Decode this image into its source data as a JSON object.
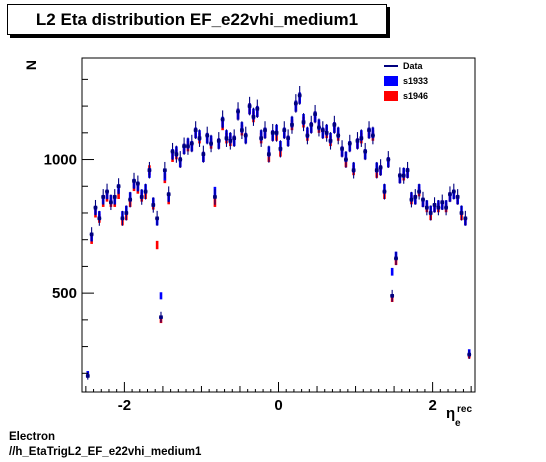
{
  "title": "L2 Eta distribution EF_e22vhi_medium1",
  "footer": {
    "line1": "Electron",
    "line2": "//h_EtaTrigL2_EF_e22vhi_medium1"
  },
  "colors": {
    "data": "#00007f",
    "s1933": "#0000ff",
    "s1946": "#ff0000"
  },
  "chart_data": {
    "type": "scatter",
    "title": "L2 Eta distribution EF_e22vhi_medium1",
    "xlabel": "η",
    "xlabel_sub": "e",
    "xlabel_sup": "rec",
    "ylabel": "N",
    "xlim": [
      -2.55,
      2.55
    ],
    "ylim": [
      130,
      1380
    ],
    "xticks": [
      -2,
      0,
      2
    ],
    "xtick_labels": [
      "-2",
      "0",
      "2"
    ],
    "yticks": [
      500,
      1000
    ],
    "ytick_labels": [
      "500",
      "1000"
    ],
    "legend_position": "top-right",
    "legend": [
      "Data",
      "s1933",
      "s1946"
    ],
    "x": [
      -2.475,
      -2.425,
      -2.375,
      -2.325,
      -2.275,
      -2.225,
      -2.175,
      -2.125,
      -2.075,
      -2.025,
      -1.975,
      -1.925,
      -1.875,
      -1.825,
      -1.775,
      -1.725,
      -1.675,
      -1.625,
      -1.575,
      -1.525,
      -1.475,
      -1.425,
      -1.375,
      -1.325,
      -1.275,
      -1.225,
      -1.175,
      -1.125,
      -1.075,
      -1.025,
      -0.975,
      -0.925,
      -0.875,
      -0.825,
      -0.775,
      -0.725,
      -0.675,
      -0.625,
      -0.575,
      -0.525,
      -0.475,
      -0.425,
      -0.375,
      -0.325,
      -0.275,
      -0.225,
      -0.175,
      -0.125,
      -0.075,
      -0.025,
      0.025,
      0.075,
      0.125,
      0.175,
      0.225,
      0.275,
      0.325,
      0.375,
      0.425,
      0.475,
      0.525,
      0.575,
      0.625,
      0.675,
      0.725,
      0.775,
      0.825,
      0.875,
      0.925,
      0.975,
      1.025,
      1.075,
      1.125,
      1.175,
      1.225,
      1.275,
      1.325,
      1.375,
      1.425,
      1.475,
      1.525,
      1.575,
      1.625,
      1.675,
      1.725,
      1.775,
      1.825,
      1.875,
      1.925,
      1.975,
      2.025,
      2.075,
      2.125,
      2.175,
      2.225,
      2.275,
      2.325,
      2.375,
      2.425,
      2.475
    ],
    "series": [
      {
        "name": "Data",
        "values": [
          190,
          720,
          820,
          780,
          860,
          880,
          840,
          860,
          900,
          780,
          800,
          850,
          920,
          910,
          860,
          880,
          960,
          830,
          780,
          410,
          960,
          870,
          1030,
          1020,
          1000,
          1050,
          1050,
          1060,
          1110,
          1080,
          1020,
          1090,
          1060,
          860,
          1070,
          1150,
          1080,
          1070,
          1080,
          1180,
          1110,
          1090,
          1200,
          1160,
          1190,
          1080,
          1110,
          1020,
          1100,
          1100,
          1040,
          1110,
          1080,
          1130,
          1210,
          1240,
          1140,
          1090,
          1130,
          1170,
          1120,
          1110,
          1100,
          1070,
          1130,
          1090,
          1040,
          1000,
          1060,
          960,
          1070,
          1080,
          1030,
          1110,
          1090,
          960,
          970,
          880,
          1000,
          490,
          630,
          940,
          940,
          960,
          850,
          860,
          880,
          850,
          820,
          800,
          830,
          820,
          840,
          820,
          870,
          880,
          860,
          800,
          780,
          270
        ]
      },
      {
        "name": "s1933",
        "values": [
          200,
          710,
          810,
          790,
          850,
          870,
          850,
          850,
          890,
          790,
          810,
          860,
          910,
          900,
          870,
          890,
          950,
          840,
          770,
          490,
          940,
          860,
          1020,
          1030,
          990,
          1040,
          1060,
          1050,
          1100,
          1090,
          1010,
          1080,
          1070,
          880,
          1060,
          1140,
          1090,
          1080,
          1070,
          1170,
          1120,
          1080,
          1190,
          1170,
          1180,
          1090,
          1100,
          1030,
          1090,
          1110,
          1050,
          1100,
          1070,
          1140,
          1200,
          1230,
          1150,
          1100,
          1120,
          1160,
          1130,
          1100,
          1110,
          1080,
          1120,
          1100,
          1030,
          1010,
          1050,
          970,
          1060,
          1090,
          1020,
          1100,
          1100,
          970,
          960,
          890,
          990,
          580,
          640,
          930,
          950,
          950,
          860,
          850,
          890,
          840,
          830,
          810,
          820,
          830,
          830,
          830,
          860,
          870,
          850,
          810,
          770,
          280
        ]
      },
      {
        "name": "s1946",
        "values": [
          195,
          700,
          800,
          780,
          840,
          860,
          840,
          840,
          870,
          770,
          790,
          840,
          900,
          890,
          860,
          870,
          960,
          830,
          680,
          400,
          930,
          850,
          1010,
          1020,
          990,
          1040,
          1050,
          1050,
          1100,
          1080,
          1010,
          1080,
          1060,
          840,
          1060,
          1130,
          1080,
          1070,
          1070,
          1170,
          1110,
          1080,
          1190,
          1160,
          1180,
          1080,
          1100,
          1010,
          1090,
          1090,
          1030,
          1100,
          1070,
          1130,
          1200,
          1230,
          1140,
          1090,
          1120,
          1160,
          1120,
          1100,
          1100,
          1070,
          1120,
          1090,
          1030,
          990,
          1050,
          960,
          1060,
          1080,
          1020,
          1100,
          1090,
          950,
          960,
          870,
          990,
          480,
          620,
          930,
          940,
          950,
          850,
          850,
          880,
          840,
          820,
          790,
          820,
          820,
          830,
          820,
          860,
          870,
          850,
          790,
          770,
          265
        ]
      }
    ]
  }
}
